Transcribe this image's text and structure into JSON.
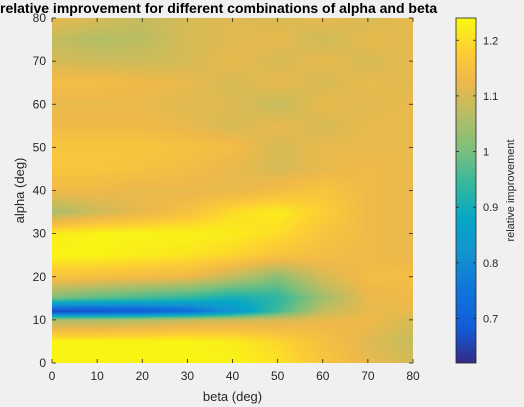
{
  "chart_data": [
    {
      "type": "heatmap",
      "title": "relative improvement for different combinations of alpha and beta",
      "xlabel": "beta (deg)",
      "ylabel": "alpha (deg)",
      "xlim": [
        0,
        80
      ],
      "ylim": [
        0,
        80
      ],
      "x_ticks": [
        0,
        10,
        20,
        30,
        40,
        50,
        60,
        70,
        80
      ],
      "y_ticks": [
        0,
        10,
        20,
        30,
        40,
        50,
        60,
        70,
        80
      ],
      "x_tick_labels": [
        "0",
        "10",
        "20",
        "30",
        "40",
        "50",
        "60",
        "70",
        "80"
      ],
      "y_tick_labels": [
        "0",
        "10",
        "20",
        "30",
        "40",
        "50",
        "60",
        "70",
        "80"
      ],
      "colormap": "parula",
      "grid": false,
      "x": [
        0,
        10,
        20,
        30,
        40,
        50,
        60,
        70,
        80
      ],
      "y": [
        0,
        5,
        10,
        12,
        15,
        20,
        25,
        30,
        35,
        40,
        45,
        50,
        55,
        60,
        65,
        70,
        75,
        80
      ],
      "z": [
        [
          1.23,
          1.23,
          1.23,
          1.23,
          1.23,
          1.21,
          1.16,
          1.12,
          1.1
        ],
        [
          1.23,
          1.23,
          1.23,
          1.23,
          1.22,
          1.19,
          1.15,
          1.11,
          1.08
        ],
        [
          1.05,
          1.05,
          1.06,
          1.08,
          1.09,
          1.1,
          1.12,
          1.13,
          1.1
        ],
        [
          0.65,
          0.66,
          0.68,
          0.72,
          0.82,
          0.95,
          1.08,
          1.12,
          1.12
        ],
        [
          1.0,
          0.97,
          0.95,
          0.93,
          0.9,
          0.93,
          1.04,
          1.12,
          1.13
        ],
        [
          1.16,
          1.15,
          1.14,
          1.13,
          1.08,
          1.02,
          1.1,
          1.14,
          1.14
        ],
        [
          1.23,
          1.23,
          1.22,
          1.21,
          1.19,
          1.16,
          1.14,
          1.13,
          1.12
        ],
        [
          1.22,
          1.23,
          1.23,
          1.23,
          1.22,
          1.2,
          1.16,
          1.13,
          1.12
        ],
        [
          1.05,
          1.09,
          1.12,
          1.15,
          1.2,
          1.22,
          1.18,
          1.13,
          1.12
        ],
        [
          1.13,
          1.13,
          1.12,
          1.12,
          1.12,
          1.14,
          1.16,
          1.13,
          1.12
        ],
        [
          1.16,
          1.16,
          1.15,
          1.14,
          1.12,
          1.1,
          1.12,
          1.13,
          1.12
        ],
        [
          1.16,
          1.16,
          1.16,
          1.15,
          1.14,
          1.1,
          1.12,
          1.12,
          1.12
        ],
        [
          1.13,
          1.13,
          1.13,
          1.12,
          1.1,
          1.12,
          1.1,
          1.12,
          1.12
        ],
        [
          1.12,
          1.12,
          1.12,
          1.11,
          1.11,
          1.08,
          1.12,
          1.11,
          1.12
        ],
        [
          1.14,
          1.14,
          1.13,
          1.12,
          1.1,
          1.12,
          1.1,
          1.12,
          1.11
        ],
        [
          1.1,
          1.09,
          1.09,
          1.1,
          1.12,
          1.1,
          1.12,
          1.1,
          1.12
        ],
        [
          1.08,
          1.06,
          1.07,
          1.1,
          1.11,
          1.12,
          1.09,
          1.12,
          1.11
        ],
        [
          1.12,
          1.1,
          1.08,
          1.1,
          1.11,
          1.1,
          1.12,
          1.1,
          1.12
        ]
      ]
    },
    {
      "type": "colorbar",
      "label": "relative improvement",
      "clim": [
        0.62,
        1.24
      ],
      "ticks": [
        0.7,
        0.8,
        0.9,
        1.0,
        1.1,
        1.2
      ],
      "tick_labels": [
        "0.7",
        "0.8",
        "0.9",
        "1",
        "1.1",
        "1.2"
      ]
    }
  ]
}
